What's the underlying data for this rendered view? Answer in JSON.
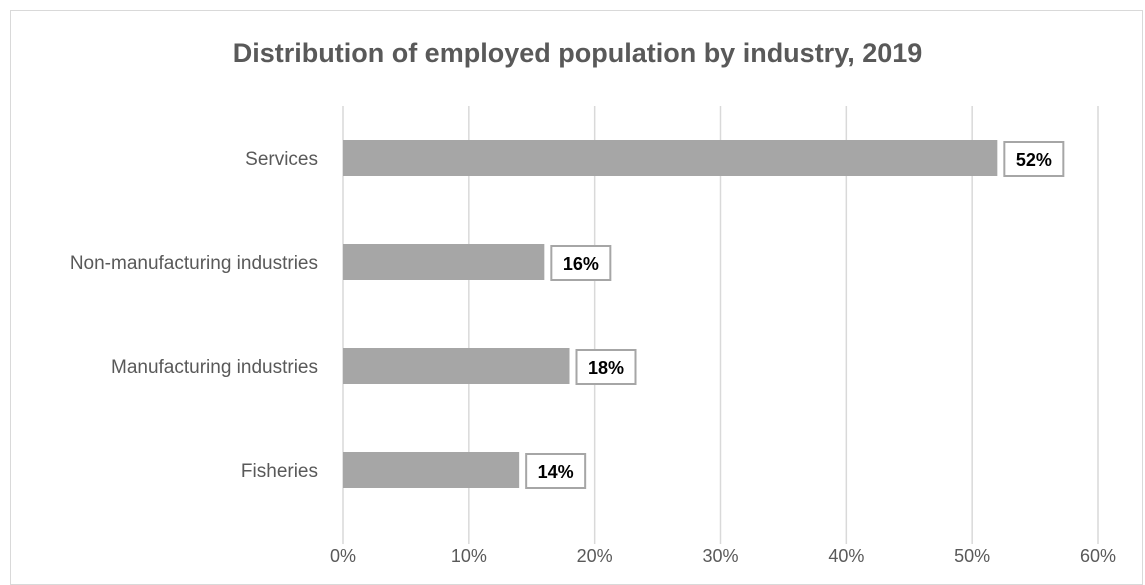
{
  "chart_data": {
    "type": "bar",
    "orientation": "horizontal",
    "title": "Distribution of employed population by industry, 2019",
    "categories": [
      "Services",
      "Non-manufacturing industries",
      "Manufacturing industries",
      "Fisheries"
    ],
    "values": [
      52,
      16,
      18,
      14
    ],
    "data_labels": [
      "52%",
      "16%",
      "18%",
      "14%"
    ],
    "xlim": [
      0,
      60
    ],
    "x_ticks": [
      "0%",
      "10%",
      "20%",
      "30%",
      "40%",
      "50%",
      "60%"
    ],
    "xlabel": "",
    "ylabel": "",
    "grid": true,
    "legend": "none",
    "colors": {
      "bar": "#a6a6a6",
      "grid": "#d9d9d9",
      "text": "#595959",
      "label_border": "#a6a6a6"
    }
  }
}
